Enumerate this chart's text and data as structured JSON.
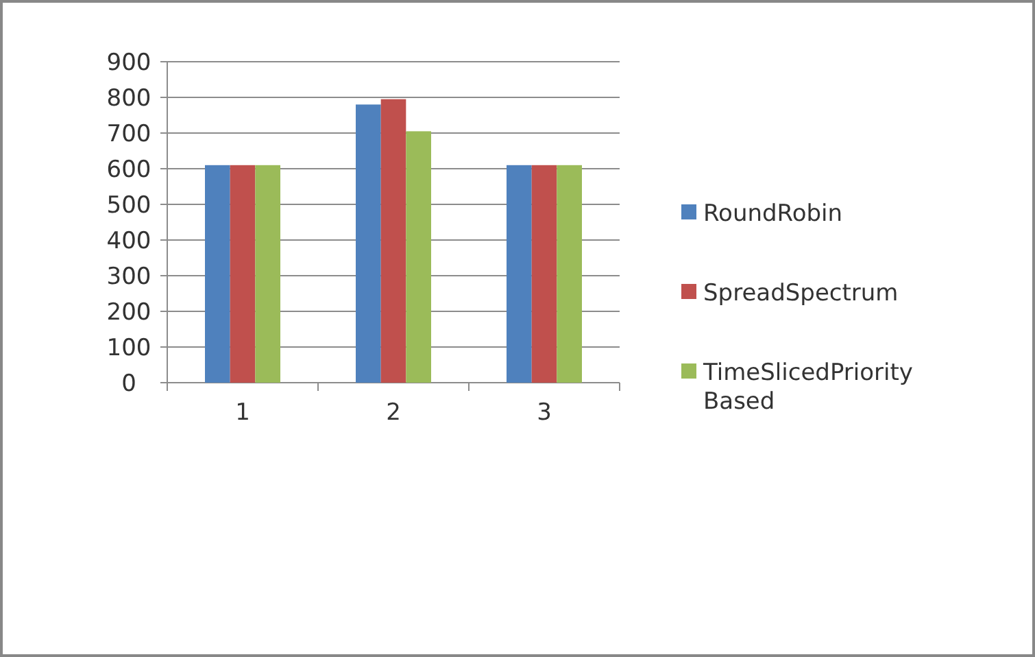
{
  "chart_data": {
    "type": "bar",
    "categories": [
      "1",
      "2",
      "3"
    ],
    "series": [
      {
        "name": "RoundRobin",
        "color": "#4f81bd",
        "values": [
          610,
          780,
          610
        ]
      },
      {
        "name": "SpreadSpectrum",
        "color": "#c0504d",
        "values": [
          610,
          795,
          610
        ]
      },
      {
        "name": "TimeSlicedPriority Based",
        "color": "#9bbb59",
        "values": [
          610,
          705,
          610
        ]
      }
    ],
    "ylim": [
      0,
      900
    ],
    "yticks": [
      0,
      100,
      200,
      300,
      400,
      500,
      600,
      700,
      800,
      900
    ],
    "grid": "y",
    "legend": "right"
  }
}
